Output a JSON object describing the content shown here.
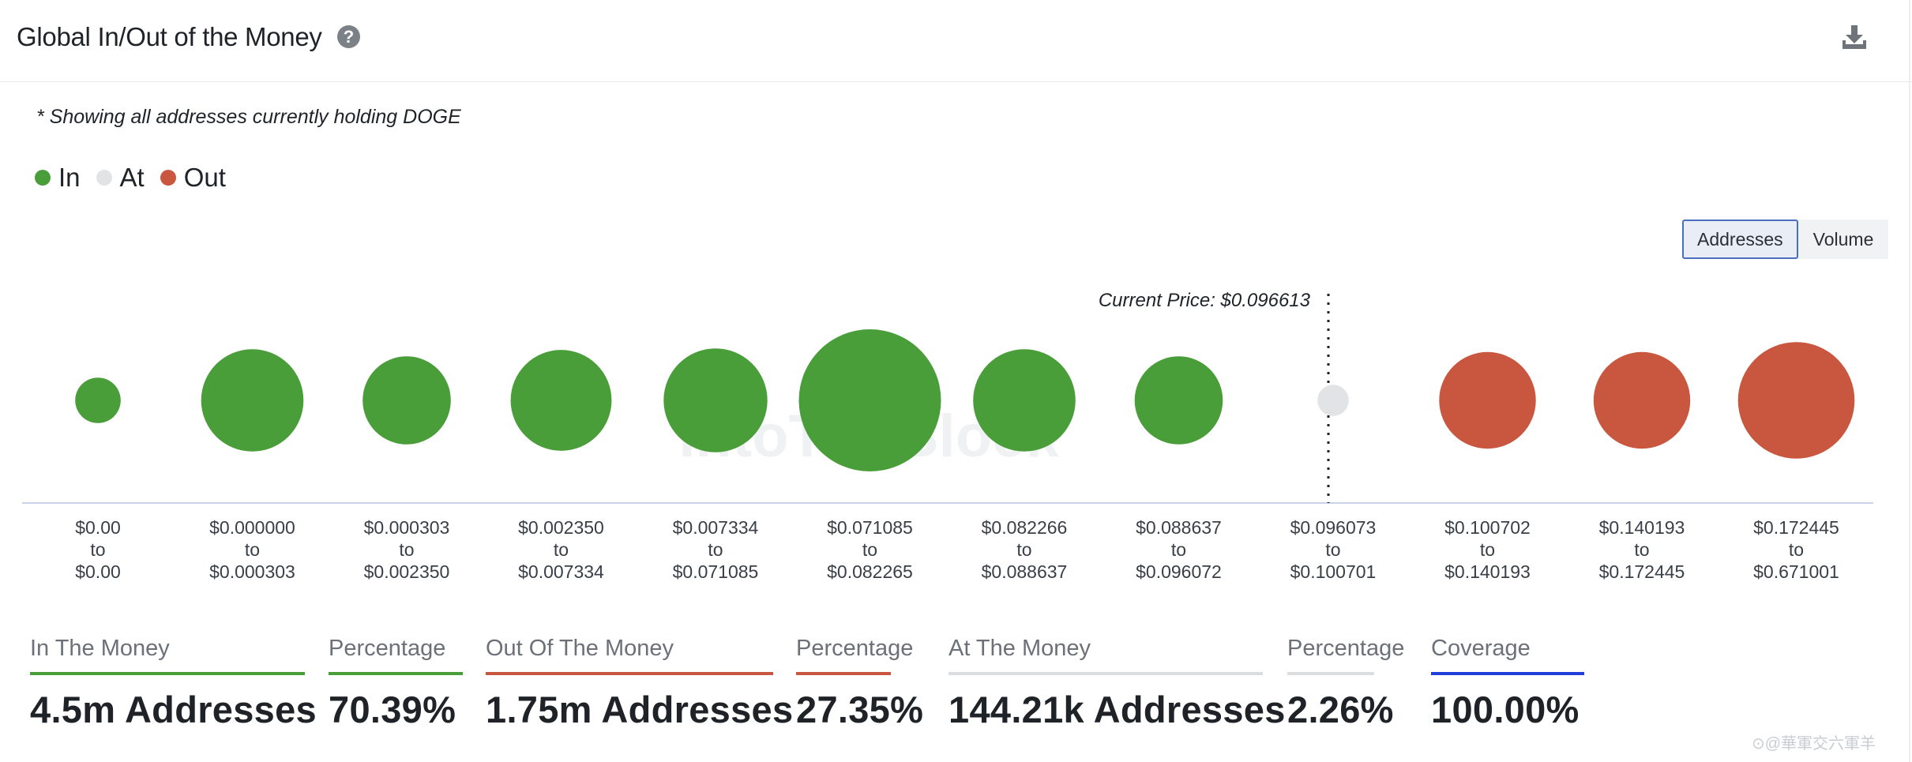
{
  "header": {
    "title": "Global In/Out of the Money",
    "help_icon": "question-circle-icon",
    "download_icon": "download-icon"
  },
  "note": "* Showing all addresses currently holding DOGE",
  "legend": [
    {
      "label": "In",
      "color": "#4a9e3a"
    },
    {
      "label": "At",
      "color": "#e2e3e5"
    },
    {
      "label": "Out",
      "color": "#c9573f"
    }
  ],
  "toggle": {
    "addresses_label": "Addresses",
    "volume_label": "Volume",
    "selected": "Addresses"
  },
  "chart_data": {
    "type": "scatter",
    "subtype": "bubble",
    "current_price_label": "Current Price: $0.096613",
    "current_price": 0.096613,
    "watermark": "IntoTheBlock",
    "x_range_labels": [
      [
        "$0.00",
        "to",
        "$0.00"
      ],
      [
        "$0.000000",
        "to",
        "$0.000303"
      ],
      [
        "$0.000303",
        "to",
        "$0.002350"
      ],
      [
        "$0.002350",
        "to",
        "$0.007334"
      ],
      [
        "$0.007334",
        "to",
        "$0.071085"
      ],
      [
        "$0.071085",
        "to",
        "$0.082265"
      ],
      [
        "$0.082266",
        "to",
        "$0.088637"
      ],
      [
        "$0.088637",
        "to",
        "$0.096072"
      ],
      [
        "$0.096073",
        "to",
        "$0.100701"
      ],
      [
        "$0.100702",
        "to",
        "$0.140193"
      ],
      [
        "$0.140193",
        "to",
        "$0.172445"
      ],
      [
        "$0.172445",
        "to",
        "$0.671001"
      ]
    ],
    "status": [
      "In",
      "In",
      "In",
      "In",
      "In",
      "In",
      "In",
      "In",
      "At",
      "Out",
      "Out",
      "Out"
    ],
    "relative_size": [
      0.32,
      0.72,
      0.62,
      0.71,
      0.73,
      1.0,
      0.72,
      0.62,
      0.22,
      0.68,
      0.68,
      0.82
    ]
  },
  "stats": [
    {
      "label": "In The Money",
      "value": "4.5m Addresses",
      "color": "#4a9e3a"
    },
    {
      "label": "Percentage",
      "value": "70.39%",
      "color": "#4a9e3a"
    },
    {
      "label": "Out Of The Money",
      "value": "1.75m Addresses",
      "color": "#c9573f"
    },
    {
      "label": "Percentage",
      "value": "27.35%",
      "color": "#c9573f"
    },
    {
      "label": "At The Money",
      "value": "144.21k Addresses",
      "color": "#dcdde0"
    },
    {
      "label": "Percentage",
      "value": "2.26%",
      "color": "#dcdde0"
    },
    {
      "label": "Coverage",
      "value": "100.00%",
      "color": "#1f3fd8"
    }
  ],
  "corner_watermark": "⊙@華軍交六軍羊"
}
